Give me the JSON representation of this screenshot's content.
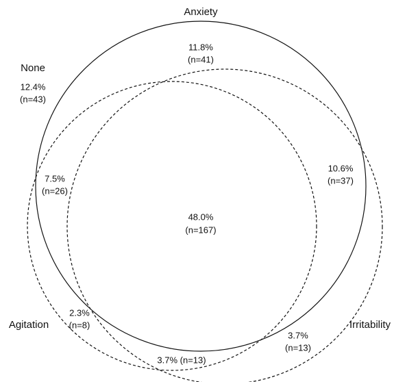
{
  "sets": [
    {
      "label": "Anxiety"
    },
    {
      "label": "None"
    },
    {
      "label": "Agitation"
    },
    {
      "label": "Irritability"
    }
  ],
  "regions": [
    {
      "lines": [
        "12.4%",
        "(n=43)"
      ]
    },
    {
      "lines": [
        "11.8%",
        "(n=41)"
      ]
    },
    {
      "lines": [
        "10.6%",
        "(n=37)"
      ]
    },
    {
      "lines": [
        "7.5%",
        "(n=26)"
      ]
    },
    {
      "lines": [
        "48.0%",
        "(n=167)"
      ]
    },
    {
      "lines": [
        "2.3%",
        "(n=8)"
      ]
    },
    {
      "lines": [
        "3.7%",
        "(n=13)"
      ]
    },
    {
      "lines": [
        "3.7% (n=13)"
      ]
    }
  ]
}
